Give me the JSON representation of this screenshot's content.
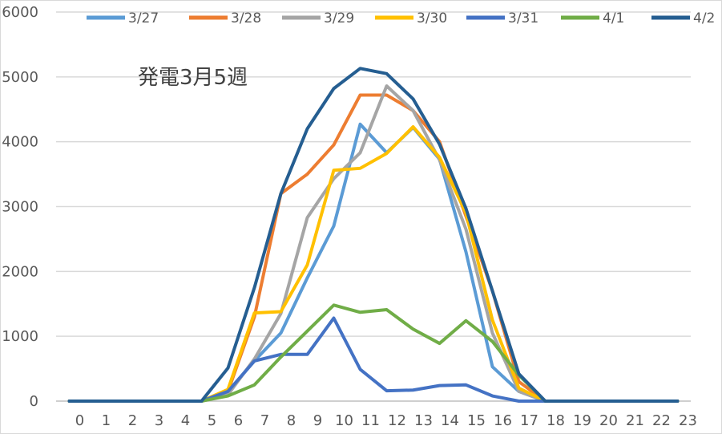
{
  "chart_data": {
    "type": "line",
    "title": "発電3月5週",
    "x": [
      0,
      1,
      2,
      3,
      4,
      5,
      6,
      7,
      8,
      9,
      10,
      11,
      12,
      13,
      14,
      15,
      16,
      17,
      18,
      19,
      20,
      21,
      22,
      23
    ],
    "ylim": [
      0,
      6000
    ],
    "yticks": [
      0,
      1000,
      2000,
      3000,
      4000,
      5000,
      6000
    ],
    "grid": true,
    "legend_position": "top",
    "series": [
      {
        "name": "3/27",
        "color": "#5B9BD5",
        "values": [
          0,
          0,
          0,
          0,
          0,
          0,
          150,
          620,
          1050,
          1900,
          2700,
          4270,
          3830,
          4220,
          3730,
          2300,
          530,
          150,
          0,
          0,
          0,
          0,
          0,
          0
        ]
      },
      {
        "name": "3/28",
        "color": "#ED7D31",
        "values": [
          0,
          0,
          0,
          0,
          0,
          0,
          150,
          1300,
          3200,
          3500,
          3950,
          4720,
          4720,
          4480,
          4000,
          2850,
          1700,
          300,
          0,
          0,
          0,
          0,
          0,
          0
        ]
      },
      {
        "name": "3/29",
        "color": "#A5A5A5",
        "values": [
          0,
          0,
          0,
          0,
          0,
          0,
          100,
          650,
          1350,
          2830,
          3430,
          3830,
          4860,
          4480,
          3720,
          2650,
          1050,
          150,
          0,
          0,
          0,
          0,
          0,
          0
        ]
      },
      {
        "name": "3/30",
        "color": "#FFC000",
        "values": [
          0,
          0,
          0,
          0,
          0,
          0,
          180,
          1360,
          1380,
          2100,
          3560,
          3590,
          3820,
          4230,
          3760,
          2900,
          1250,
          200,
          0,
          0,
          0,
          0,
          0,
          0
        ]
      },
      {
        "name": "3/31",
        "color": "#4472C4",
        "values": [
          0,
          0,
          0,
          0,
          0,
          0,
          150,
          620,
          720,
          720,
          1280,
          490,
          160,
          170,
          240,
          250,
          80,
          0,
          0,
          0,
          0,
          0,
          0,
          0
        ]
      },
      {
        "name": "4/1",
        "color": "#70AD47",
        "values": [
          0,
          0,
          0,
          0,
          0,
          0,
          80,
          250,
          680,
          1080,
          1480,
          1370,
          1410,
          1110,
          890,
          1240,
          920,
          400,
          0,
          0,
          0,
          0,
          0,
          0
        ]
      },
      {
        "name": "4/2",
        "color": "#255E91",
        "values": [
          0,
          0,
          0,
          0,
          0,
          0,
          510,
          1750,
          3200,
          4200,
          4820,
          5130,
          5050,
          4660,
          3960,
          2970,
          1700,
          420,
          0,
          0,
          0,
          0,
          0,
          0
        ]
      }
    ]
  }
}
